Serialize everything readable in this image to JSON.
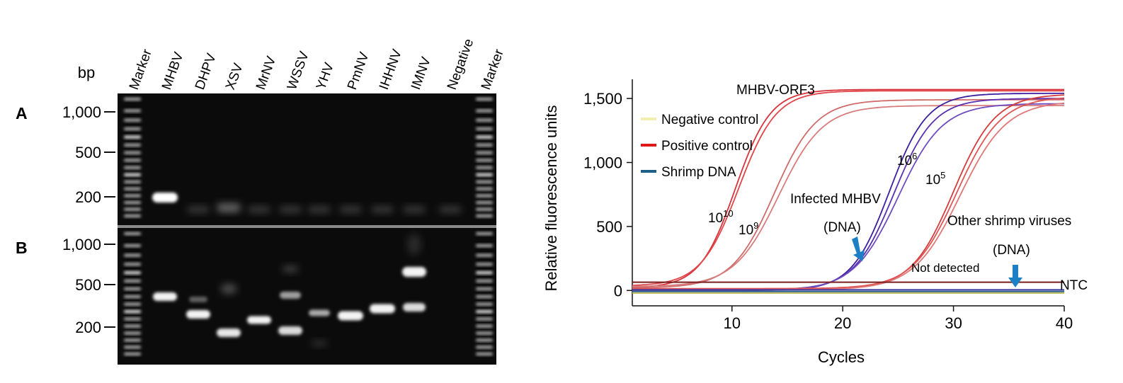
{
  "gel": {
    "bp_label": "bp",
    "lane_labels": [
      "Marker",
      "MHBV",
      "DHPV",
      "XSV",
      "MrNV",
      "WSSV",
      "YHV",
      "PmNV",
      "IHHNV",
      "IMNV",
      "Negative",
      "Marker"
    ],
    "panel_a": {
      "label": "A",
      "size_ticks": [
        "1,000",
        "500",
        "200"
      ]
    },
    "panel_b": {
      "label": "B",
      "size_ticks": [
        "1,000",
        "500",
        "200"
      ]
    }
  },
  "chart_data": {
    "type": "line",
    "title": "MHBV-ORF3",
    "xlabel": "Cycles",
    "ylabel": "Relative fluorescence units",
    "xlim": [
      1,
      40
    ],
    "ylim": [
      -120,
      1650
    ],
    "x_ticks": [
      10,
      20,
      30,
      40
    ],
    "y_ticks": [
      0,
      500,
      1000,
      1500
    ],
    "y_tick_labels": [
      "0",
      "500",
      "1,000",
      "1,500"
    ],
    "x_tick_labels": [
      "10",
      "20",
      "30",
      "40"
    ],
    "grid": false,
    "legend_position": "top-left",
    "legend": [
      {
        "name": "Negative control",
        "color": "#f3eeb0"
      },
      {
        "name": "Positive control",
        "color": "#e01818"
      },
      {
        "name": "Shrimp DNA",
        "color": "#1e5f86"
      }
    ],
    "series": [
      {
        "group": "positive",
        "color": "#d8323a",
        "midpoint": 10.3,
        "slope": 1.6,
        "plateau": 1570,
        "baseline": 20
      },
      {
        "group": "positive",
        "color": "#e0454a",
        "midpoint": 10.6,
        "slope": 1.7,
        "plateau": 1560,
        "baseline": 35
      },
      {
        "group": "positive",
        "color": "#cf6b6b",
        "midpoint": 13.8,
        "slope": 1.9,
        "plateau": 1490,
        "baseline": 20
      },
      {
        "group": "positive",
        "color": "#d77c7c",
        "midpoint": 14.2,
        "slope": 2.0,
        "plateau": 1445,
        "baseline": 30
      },
      {
        "group": "infected",
        "color": "#3b1f9e",
        "midpoint": 24.2,
        "slope": 1.7,
        "plateau": 1540,
        "baseline": 0
      },
      {
        "group": "infected",
        "color": "#5a2fb0",
        "midpoint": 24.6,
        "slope": 1.8,
        "plateau": 1500,
        "baseline": 5
      },
      {
        "group": "infected",
        "color": "#6f4cc0",
        "midpoint": 25.0,
        "slope": 2.0,
        "plateau": 1460,
        "baseline": 0
      },
      {
        "group": "positive",
        "color": "#d53c3c",
        "midpoint": 30.0,
        "slope": 1.9,
        "plateau": 1535,
        "baseline": 10
      },
      {
        "group": "positive",
        "color": "#e05555",
        "midpoint": 30.3,
        "slope": 2.0,
        "plateau": 1515,
        "baseline": 15
      },
      {
        "group": "positive",
        "color": "#e07777",
        "midpoint": 30.6,
        "slope": 2.1,
        "plateau": 1480,
        "baseline": 5
      },
      {
        "group": "flat",
        "color": "#7a1e1e",
        "value": 65
      },
      {
        "group": "flat",
        "color": "#3a3aa0",
        "value": 5
      },
      {
        "group": "flat",
        "color": "#2a5f8f",
        "value": -8
      },
      {
        "group": "flat",
        "color": "#b8b85a",
        "value": -20
      }
    ],
    "annotations": {
      "conc_1010": {
        "base": "10",
        "exp": "10"
      },
      "conc_109": {
        "base": "10",
        "exp": "9"
      },
      "conc_106": {
        "base": "10",
        "exp": "6"
      },
      "conc_105": {
        "base": "10",
        "exp": "5"
      },
      "infected_line1": "Infected MHBV",
      "infected_line2": "(DNA)",
      "other_line1": "Other shrimp viruses",
      "other_line2": "(DNA)",
      "not_detected": "Not detected",
      "ntc": "NTC",
      "arrow_color": "#1d7fc4"
    }
  }
}
